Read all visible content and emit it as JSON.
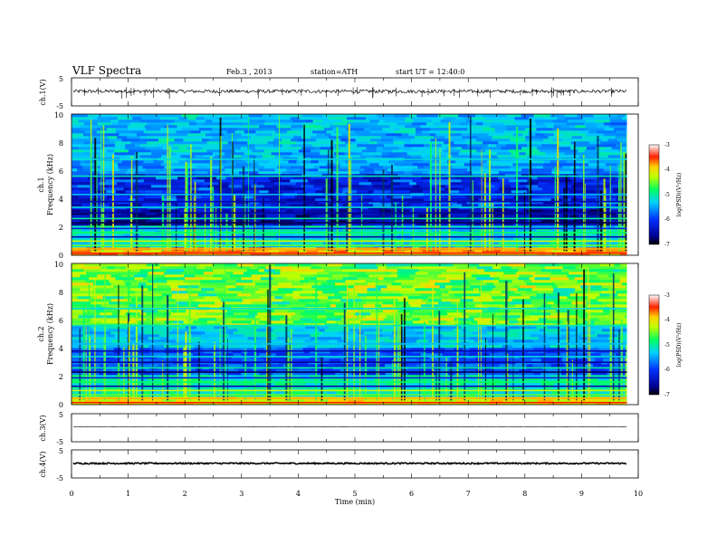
{
  "header": {
    "title": "VLF Spectra",
    "date": "Feb.3 , 2013",
    "station": "station=ATH",
    "start": "start UT = 12:40:0"
  },
  "chart_data": {
    "type": "heatmap",
    "xlabel": "Time (min)",
    "xlim": [
      0,
      10
    ],
    "x_ticks": [
      "0",
      "1",
      "2",
      "3",
      "4",
      "5",
      "6",
      "7",
      "8",
      "9",
      "10"
    ],
    "data_end_min": 9.8,
    "panels": [
      {
        "name": "ch.1 waveform",
        "ylabel": "ch.1(V)",
        "type": "line",
        "ylim": [
          -5,
          5
        ],
        "y_ticks": [
          "5",
          "-5"
        ],
        "level_v": 0.2,
        "noise_amplitude_v": 0.6
      },
      {
        "name": "ch.1 spectrogram",
        "ylabel_top": "ch.1",
        "ylabel": "Frequency (kHz)",
        "type": "heatmap",
        "ylim_khz": [
          0,
          10
        ],
        "y_ticks": [
          "0",
          "2",
          "4",
          "6",
          "8",
          "10"
        ],
        "band_strength": 0.25,
        "colorbar": {
          "label": "log(PSD)(V²/Hz)",
          "range": [
            -7,
            -3
          ],
          "ticks": [
            "-3",
            "-4",
            "-5",
            "-6",
            "-7"
          ]
        }
      },
      {
        "name": "ch.2 spectrogram",
        "ylabel_top": "ch.2",
        "ylabel": "Frequency (kHz)",
        "type": "heatmap",
        "ylim_khz": [
          0,
          10
        ],
        "y_ticks": [
          "0",
          "2",
          "4",
          "6",
          "8",
          "10"
        ],
        "band_strength": 0.55,
        "colorbar": {
          "label": "log(PSD)(V²/Hz)",
          "range": [
            -7,
            -3
          ],
          "ticks": [
            "-3",
            "-4",
            "-5",
            "-6",
            "-7"
          ]
        }
      },
      {
        "name": "ch.3 waveform",
        "ylabel": "ch.3(V)",
        "type": "line",
        "ylim": [
          -5,
          5
        ],
        "y_ticks": [
          "5",
          "-5"
        ],
        "level_v": 0.3,
        "noise_amplitude_v": 0.05
      },
      {
        "name": "ch.4 waveform",
        "ylabel": "ch.4(V)",
        "type": "line",
        "ylim": [
          -5,
          5
        ],
        "y_ticks": [
          "5",
          "-5"
        ],
        "level_v": 0.2,
        "noise_amplitude_v": 0.25
      }
    ]
  }
}
